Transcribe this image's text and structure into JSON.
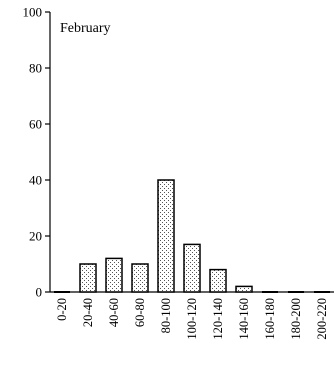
{
  "chart_data": {
    "type": "bar",
    "title": "February",
    "xlabel": "",
    "ylabel": "",
    "categories": [
      "0-20",
      "20-40",
      "40-60",
      "60-80",
      "80-100",
      "100-120",
      "120-140",
      "140-160",
      "160-180",
      "180-200",
      "200-220"
    ],
    "values": [
      0,
      10,
      12,
      10,
      40,
      17,
      8,
      2,
      0,
      0,
      0
    ],
    "ylim": [
      0,
      100
    ],
    "yticks": [
      0,
      20,
      40,
      60,
      80,
      100
    ],
    "bar_fill": "stippled",
    "grid": false,
    "legend": "none"
  }
}
